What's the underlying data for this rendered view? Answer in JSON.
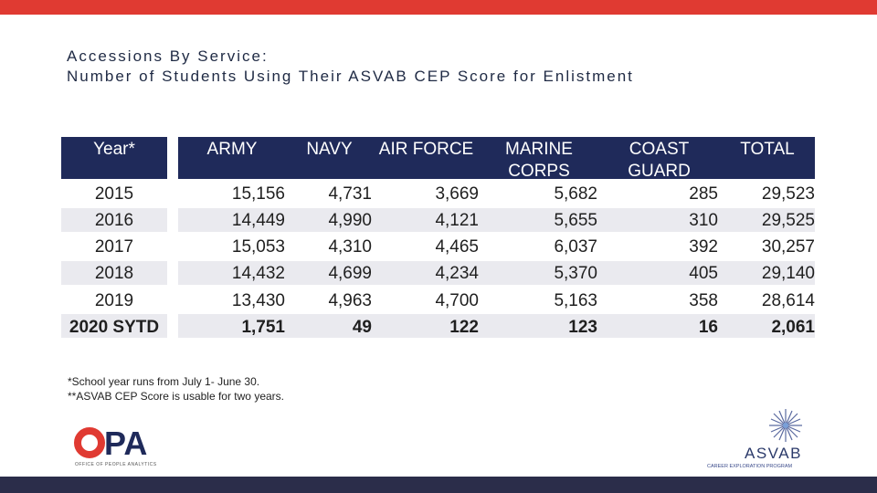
{
  "title": {
    "line1": "Accessions By Service:",
    "line2": "Number of Students Using Their ASVAB CEP Score for Enlistment"
  },
  "table": {
    "headers": [
      "Year*",
      "ARMY",
      "NAVY",
      "AIR FORCE",
      "MARINE CORPS",
      "COAST GUARD",
      "TOTAL"
    ],
    "rows": [
      [
        "2015",
        "15,156",
        "4,731",
        "3,669",
        "5,682",
        "285",
        "29,523"
      ],
      [
        "2016",
        "14,449",
        "4,990",
        "4,121",
        "5,655",
        "310",
        "29,525"
      ],
      [
        "2017",
        "15,053",
        "4,310",
        "4,465",
        "6,037",
        "392",
        "30,257"
      ],
      [
        "2018",
        "14,432",
        "4,699",
        "4,234",
        "5,370",
        "405",
        "29,140"
      ],
      [
        "2019",
        "13,430",
        "4,963",
        "4,700",
        "5,163",
        "358",
        "28,614"
      ],
      [
        "2020 SYTD",
        "1,751",
        "49",
        "122",
        "123",
        "16",
        "2,061"
      ]
    ]
  },
  "notes": [
    "*School year runs from July 1- June 30.",
    "**ASVAB CEP Score is usable for two years."
  ],
  "logos": {
    "left": {
      "text": "PA",
      "subtext": "OFFICE OF PEOPLE ANALYTICS"
    },
    "right": {
      "text": "ASVAB",
      "subtext": "CAREER EXPLORATION PROGRAM"
    }
  },
  "colors": {
    "accent_red": "#e03a32",
    "header_navy": "#1f2a5a",
    "footer_bar": "#2b2d4a",
    "row_band": "#eaeaef"
  }
}
